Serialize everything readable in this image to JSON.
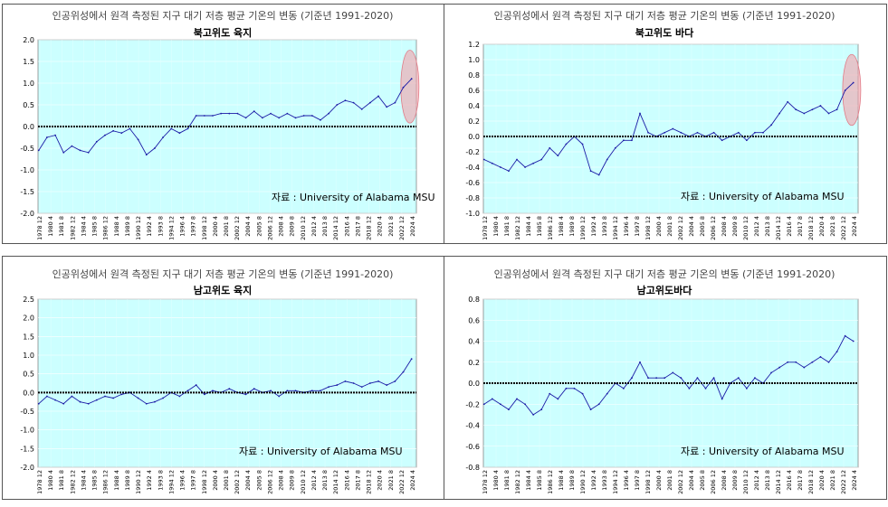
{
  "colors": {
    "plot_background": "#ccffff",
    "series_line": "#1a1aa6",
    "zero_line": "#000000",
    "highlight": "#f2a0a8"
  },
  "x_tick_labels": [
    "1978 12",
    "1980 4",
    "1981 8",
    "1982 12",
    "1984 4",
    "1985 8",
    "1986 12",
    "1988 4",
    "1989 8",
    "1990 12",
    "1992 4",
    "1993 8",
    "1994 12",
    "1996 4",
    "1997 8",
    "1998 12",
    "2000 4",
    "2001 8",
    "2002 12",
    "2004 4",
    "2005 8",
    "2006 12",
    "2008 4",
    "2009 8",
    "2010 12",
    "2012 4",
    "2013 8",
    "2014 12",
    "2016 4",
    "2017 8",
    "2018 12",
    "2020 4",
    "2021 8",
    "2022 12",
    "2024 4"
  ],
  "chart_data": [
    {
      "type": "line",
      "title": "인공위성에서 원격 측정된 지구 대기 저층 평균 기온의 변동 (기준년 1991-2020)",
      "subtitle": "북고위도 육지",
      "source": "자료 :  University of Alabama MSU",
      "x_start": "1978-12",
      "x_end": "2024-08",
      "ylim": [
        -2.0,
        2.0
      ],
      "yticks": [
        -2.0,
        -1.5,
        -1.0,
        -0.5,
        0.0,
        0.5,
        1.0,
        1.5,
        2.0
      ],
      "y_decimals": 1,
      "highlight": "2023-2024",
      "series": [
        {
          "x_unit": "year",
          "x": [
            1979,
            1980,
            1981,
            1982,
            1983,
            1984,
            1985,
            1986,
            1987,
            1988,
            1989,
            1990,
            1991,
            1992,
            1993,
            1994,
            1995,
            1996,
            1997,
            1998,
            1999,
            2000,
            2001,
            2002,
            2003,
            2004,
            2005,
            2006,
            2007,
            2008,
            2009,
            2010,
            2011,
            2012,
            2013,
            2014,
            2015,
            2016,
            2017,
            2018,
            2019,
            2020,
            2021,
            2022,
            2023,
            2024
          ],
          "values": [
            -0.55,
            -0.25,
            -0.2,
            -0.6,
            -0.45,
            -0.55,
            -0.6,
            -0.35,
            -0.2,
            -0.1,
            -0.15,
            -0.05,
            -0.3,
            -0.65,
            -0.5,
            -0.25,
            -0.05,
            -0.15,
            -0.05,
            0.25,
            0.25,
            0.25,
            0.3,
            0.3,
            0.3,
            0.2,
            0.35,
            0.2,
            0.3,
            0.2,
            0.3,
            0.2,
            0.25,
            0.25,
            0.15,
            0.3,
            0.5,
            0.6,
            0.55,
            0.4,
            0.55,
            0.7,
            0.45,
            0.55,
            0.9,
            1.1
          ]
        }
      ]
    },
    {
      "type": "line",
      "title": "인공위성에서 원격 측정된 지구 대기 저층 평균 기온의 변동 (기준년 1991-2020)",
      "subtitle": "북고위도 바다",
      "source": "자료 :  University of Alabama MSU",
      "x_start": "1978-12",
      "x_end": "2024-08",
      "ylim": [
        -1.0,
        1.2
      ],
      "yticks": [
        -1.0,
        -0.8,
        -0.6,
        -0.4,
        -0.2,
        0.0,
        0.2,
        0.4,
        0.6,
        0.8,
        1.0,
        1.2
      ],
      "y_decimals": 1,
      "highlight": "2023-2024",
      "series": [
        {
          "x_unit": "year",
          "x": [
            1979,
            1980,
            1981,
            1982,
            1983,
            1984,
            1985,
            1986,
            1987,
            1988,
            1989,
            1990,
            1991,
            1992,
            1993,
            1994,
            1995,
            1996,
            1997,
            1998,
            1999,
            2000,
            2001,
            2002,
            2003,
            2004,
            2005,
            2006,
            2007,
            2008,
            2009,
            2010,
            2011,
            2012,
            2013,
            2014,
            2015,
            2016,
            2017,
            2018,
            2019,
            2020,
            2021,
            2022,
            2023,
            2024
          ],
          "values": [
            -0.3,
            -0.35,
            -0.4,
            -0.45,
            -0.3,
            -0.4,
            -0.35,
            -0.3,
            -0.15,
            -0.25,
            -0.1,
            0.0,
            -0.1,
            -0.45,
            -0.5,
            -0.3,
            -0.15,
            -0.05,
            -0.05,
            0.3,
            0.05,
            0.0,
            0.05,
            0.1,
            0.05,
            0.0,
            0.05,
            0.0,
            0.05,
            -0.05,
            0.0,
            0.05,
            -0.05,
            0.05,
            0.05,
            0.15,
            0.3,
            0.45,
            0.35,
            0.3,
            0.35,
            0.4,
            0.3,
            0.35,
            0.6,
            0.7
          ]
        }
      ]
    },
    {
      "type": "line",
      "title": "인공위성에서 원격 측정된 지구 대기 저층 평균 기온의 변동 (기준년 1991-2020)",
      "subtitle": "남고위도 육지",
      "source": "자료 :  University of Alabama MSU",
      "x_start": "1978-12",
      "x_end": "2024-08",
      "ylim": [
        -2.0,
        2.5
      ],
      "yticks": [
        -2.0,
        -1.5,
        -1.0,
        -0.5,
        0.0,
        0.5,
        1.0,
        1.5,
        2.0,
        2.5
      ],
      "y_decimals": 1,
      "highlight": "",
      "series": [
        {
          "x_unit": "year",
          "x": [
            1979,
            1980,
            1981,
            1982,
            1983,
            1984,
            1985,
            1986,
            1987,
            1988,
            1989,
            1990,
            1991,
            1992,
            1993,
            1994,
            1995,
            1996,
            1997,
            1998,
            1999,
            2000,
            2001,
            2002,
            2003,
            2004,
            2005,
            2006,
            2007,
            2008,
            2009,
            2010,
            2011,
            2012,
            2013,
            2014,
            2015,
            2016,
            2017,
            2018,
            2019,
            2020,
            2021,
            2022,
            2023,
            2024
          ],
          "values": [
            -0.3,
            -0.1,
            -0.2,
            -0.3,
            -0.1,
            -0.25,
            -0.3,
            -0.2,
            -0.1,
            -0.15,
            -0.05,
            0.0,
            -0.15,
            -0.3,
            -0.25,
            -0.15,
            0.0,
            -0.1,
            0.05,
            0.2,
            -0.05,
            0.05,
            0.0,
            0.1,
            0.0,
            -0.05,
            0.1,
            0.0,
            0.05,
            -0.1,
            0.05,
            0.05,
            0.0,
            0.05,
            0.05,
            0.15,
            0.2,
            0.3,
            0.25,
            0.15,
            0.25,
            0.3,
            0.2,
            0.3,
            0.55,
            0.9
          ]
        }
      ]
    },
    {
      "type": "line",
      "title": "인공위성에서 원격 측정된 지구 대기 저층 평균 기온의 변동 (기준년 1991-2020)",
      "subtitle": "남고위도바다",
      "source": "자료 :  University of Alabama MSU",
      "x_start": "1978-12",
      "x_end": "2024-08",
      "ylim": [
        -0.8,
        0.8
      ],
      "yticks": [
        -0.8,
        -0.6,
        -0.4,
        -0.2,
        0.0,
        0.2,
        0.4,
        0.6,
        0.8
      ],
      "y_decimals": 1,
      "highlight": "",
      "series": [
        {
          "x_unit": "year",
          "x": [
            1979,
            1980,
            1981,
            1982,
            1983,
            1984,
            1985,
            1986,
            1987,
            1988,
            1989,
            1990,
            1991,
            1992,
            1993,
            1994,
            1995,
            1996,
            1997,
            1998,
            1999,
            2000,
            2001,
            2002,
            2003,
            2004,
            2005,
            2006,
            2007,
            2008,
            2009,
            2010,
            2011,
            2012,
            2013,
            2014,
            2015,
            2016,
            2017,
            2018,
            2019,
            2020,
            2021,
            2022,
            2023,
            2024
          ],
          "values": [
            -0.2,
            -0.15,
            -0.2,
            -0.25,
            -0.15,
            -0.2,
            -0.3,
            -0.25,
            -0.1,
            -0.15,
            -0.05,
            -0.05,
            -0.1,
            -0.25,
            -0.2,
            -0.1,
            0.0,
            -0.05,
            0.05,
            0.2,
            0.05,
            0.05,
            0.05,
            0.1,
            0.05,
            -0.05,
            0.05,
            -0.05,
            0.05,
            -0.15,
            0.0,
            0.05,
            -0.05,
            0.05,
            0.0,
            0.1,
            0.15,
            0.2,
            0.2,
            0.15,
            0.2,
            0.25,
            0.2,
            0.3,
            0.45,
            0.4
          ]
        }
      ]
    }
  ]
}
